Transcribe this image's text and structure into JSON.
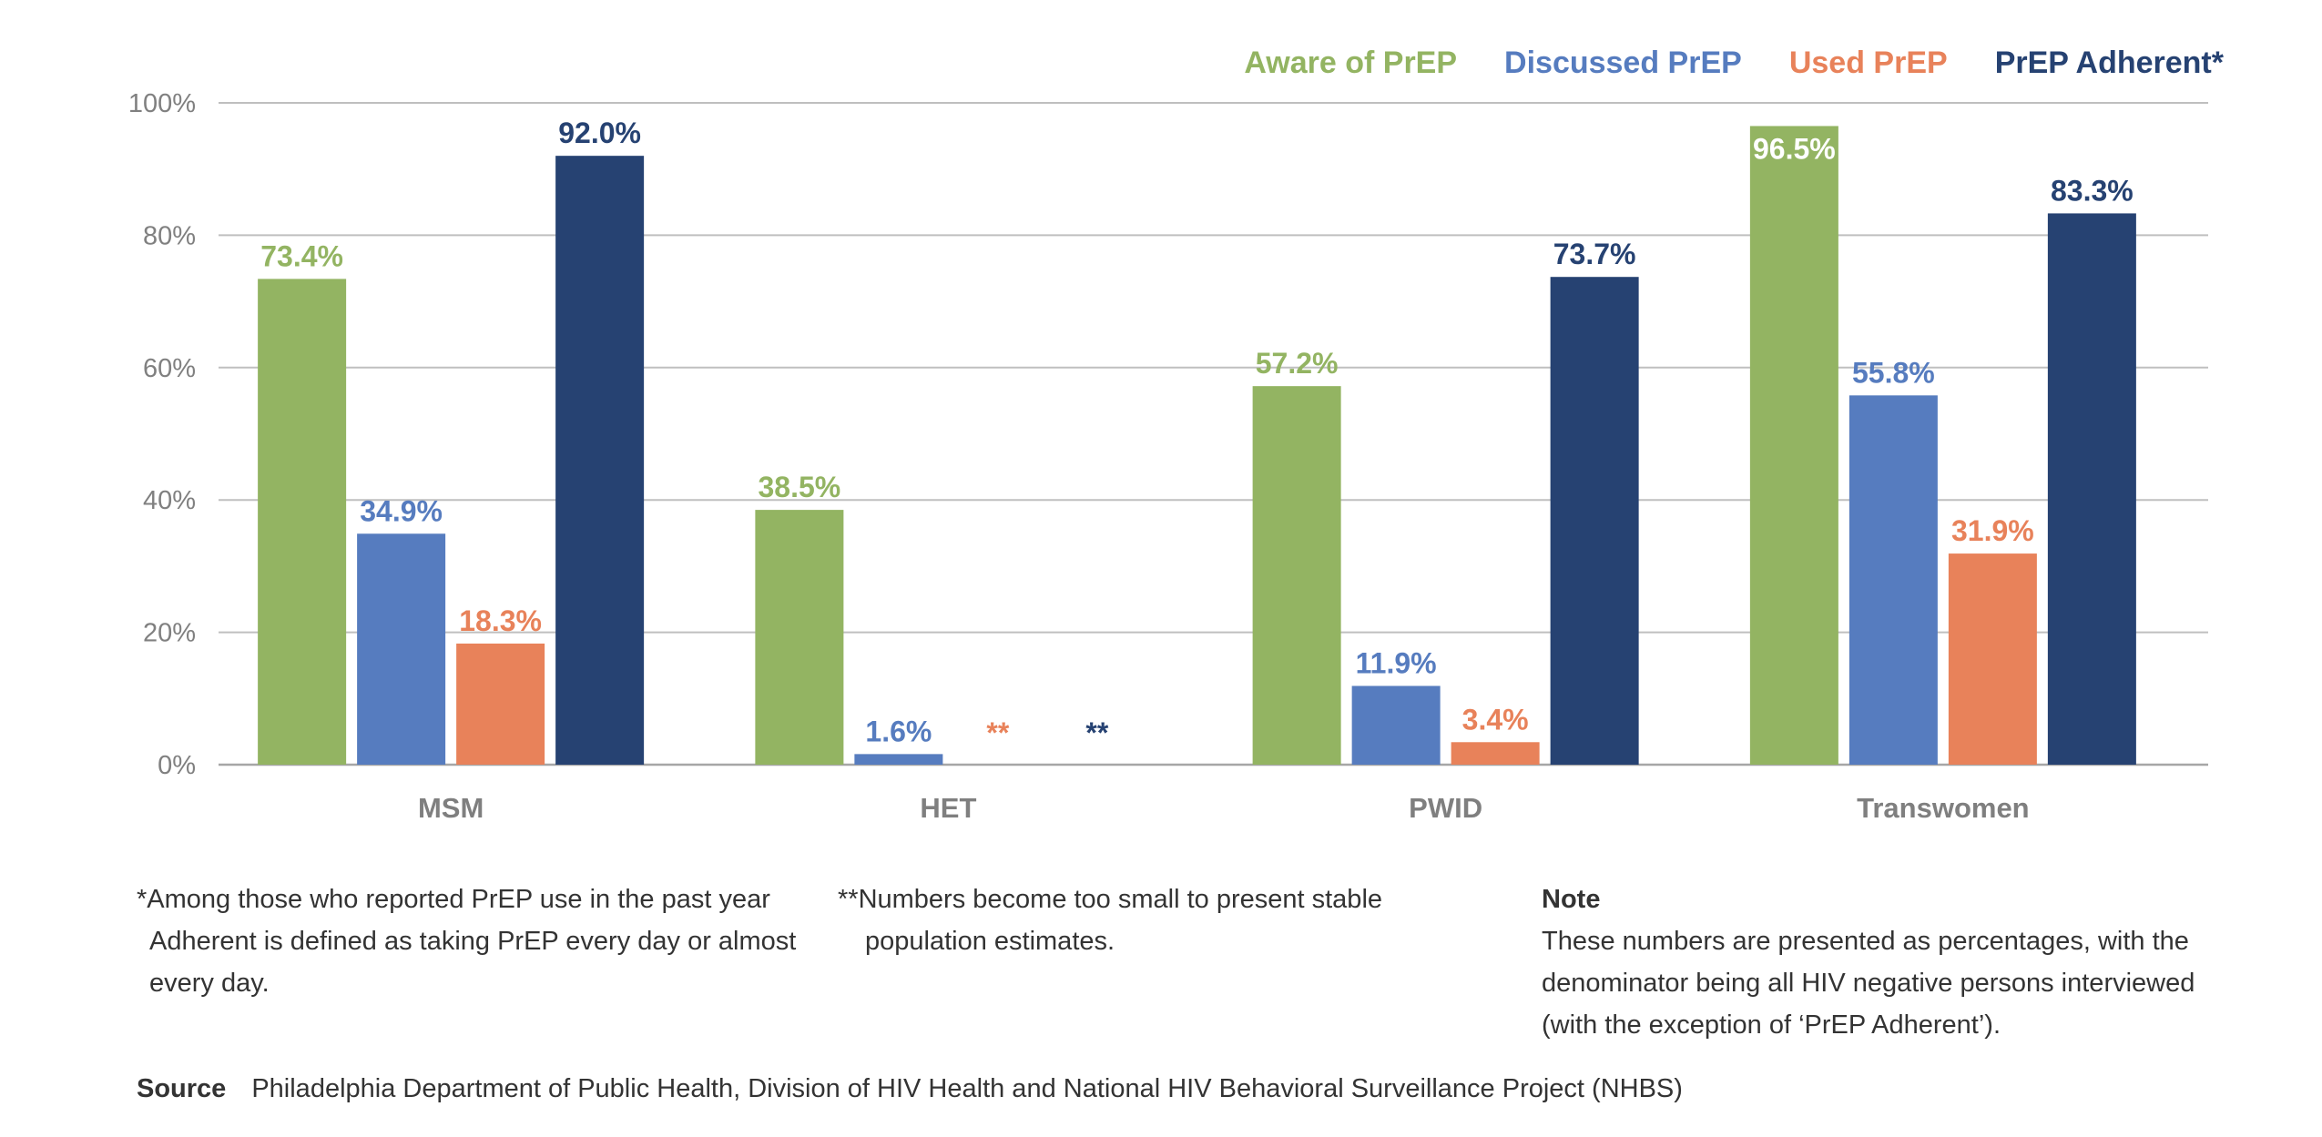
{
  "chart_data": {
    "type": "bar",
    "categories": [
      "MSM",
      "HET",
      "PWID",
      "Transwomen"
    ],
    "series": [
      {
        "name": "Aware of PrEP",
        "color": "#93b462",
        "values": [
          73.4,
          38.5,
          57.2,
          96.5
        ],
        "labels": [
          "73.4%",
          "38.5%",
          "57.2%",
          "96.5%"
        ]
      },
      {
        "name": "Discussed PrEP",
        "color": "#567cbf",
        "values": [
          34.9,
          1.6,
          11.9,
          55.8
        ],
        "labels": [
          "34.9%",
          "1.6%",
          "11.9%",
          "55.8%"
        ]
      },
      {
        "name": "Used PrEP",
        "color": "#e8825a",
        "values": [
          18.3,
          null,
          3.4,
          31.9
        ],
        "labels": [
          "18.3%",
          "**",
          "3.4%",
          "31.9%"
        ]
      },
      {
        "name": "PrEP Adherent*",
        "color": "#264272",
        "values": [
          92.0,
          null,
          73.7,
          83.3
        ],
        "labels": [
          "92.0%",
          "**",
          "73.7%",
          "83.3%"
        ]
      }
    ],
    "yticks": [
      "0%",
      "20%",
      "40%",
      "60%",
      "80%",
      "100%"
    ],
    "ylim": [
      0,
      100
    ],
    "grid": true,
    "legend_position": "top-right",
    "title": "",
    "xlabel": "",
    "ylabel": ""
  },
  "notes": {
    "asterisk": "*Among those who reported PrEP use in the past year Adherent is defined as taking PrEP every day or almost every day.",
    "double_asterisk": "**Numbers become too small to present stable population estimates.",
    "note_title": "Note",
    "note_text": "These numbers are presented as percentages, with the denominator being all HIV negative persons interviewed (with the exception of ‘PrEP Adherent’)."
  },
  "source": {
    "label": "Source",
    "text": "Philadelphia Department of Public Health, Division of HIV Health and National HIV Behavioral  Surveillance Project (NHBS)"
  }
}
